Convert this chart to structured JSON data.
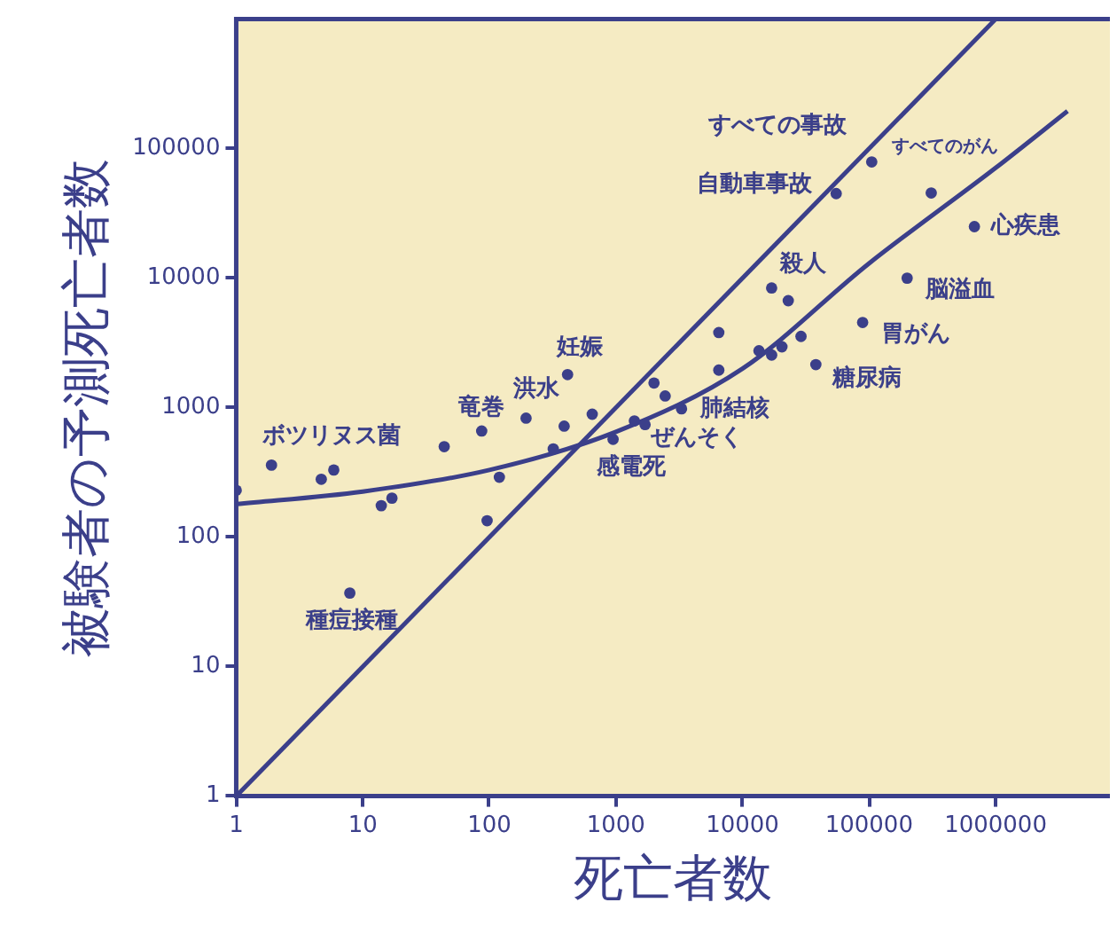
{
  "chart_data": {
    "type": "scatter",
    "xlabel": "死亡者数",
    "ylabel": "被験者の予測死亡者数",
    "log": "xy",
    "xlim": [
      1,
      8000000
    ],
    "ylim": [
      1,
      1000000
    ],
    "xticks": [
      1,
      10,
      100,
      1000,
      10000,
      100000,
      1000000
    ],
    "yticks": [
      1,
      10,
      100,
      1000,
      10000,
      100000
    ],
    "series": [
      {
        "marker": "circle",
        "color": "#3b3f8a",
        "x": [
          1,
          1.9,
          4.7,
          5.9,
          14,
          17,
          7.9,
          44,
          87,
          96,
          120,
          195,
          320,
          390,
          415,
          650,
          950,
          1400,
          1700,
          2000,
          2450,
          3300,
          6500,
          6500,
          13500,
          17000,
          20500,
          29000,
          17000,
          23000,
          38000,
          89000,
          200000,
          55000,
          105000,
          310000,
          680000
        ],
        "values": [
          230,
          360,
          280,
          330,
          175,
          200,
          37,
          500,
          660,
          134,
          290,
          830,
          480,
          720,
          1800,
          890,
          570,
          790,
          740,
          1550,
          1230,
          980,
          3800,
          1950,
          2750,
          2550,
          2950,
          3550,
          8400,
          6700,
          2150,
          4550,
          10000,
          45000,
          79000,
          45500,
          25000
        ]
      },
      {
        "type": "line",
        "marker": "none",
        "color": "#3b3f8a",
        "x": [
          1,
          10,
          100,
          1000,
          10000,
          100000,
          1000000,
          3700000
        ],
        "values": [
          180,
          225,
          330,
          650,
          2000,
          13000,
          71000,
          195000
        ]
      },
      {
        "type": "line",
        "marker": "none",
        "color": "#3b3f8a",
        "x": [
          1,
          1000000
        ],
        "values": [
          1,
          1000000
        ]
      }
    ],
    "annotations": [
      {
        "text": "ボツリヌス菌",
        "x": 1.9,
        "y": 360
      },
      {
        "text": "種痘接種",
        "x": 7.9,
        "y": 37
      },
      {
        "text": "竜巻",
        "x": 87,
        "y": 660
      },
      {
        "text": "洪水",
        "x": 195,
        "y": 830
      },
      {
        "text": "妊娠",
        "x": 415,
        "y": 1800
      },
      {
        "text": "感電死",
        "x": 950,
        "y": 570
      },
      {
        "text": "ぜんそく",
        "x": 1700,
        "y": 740
      },
      {
        "text": "肺結核",
        "x": 3300,
        "y": 980
      },
      {
        "text": "殺人",
        "x": 17000,
        "y": 8400
      },
      {
        "text": "糖尿病",
        "x": 38000,
        "y": 2150
      },
      {
        "text": "胃がん",
        "x": 89000,
        "y": 4550
      },
      {
        "text": "脳溢血",
        "x": 200000,
        "y": 10000
      },
      {
        "text": "心疾患",
        "x": 680000,
        "y": 25000
      },
      {
        "text": "自動車事故",
        "x": 55000,
        "y": 45000
      },
      {
        "text": "すべての事故",
        "x": 105000,
        "y": 79000
      },
      {
        "text": "すべてのがん",
        "x": 310000,
        "y": 45500
      }
    ]
  }
}
